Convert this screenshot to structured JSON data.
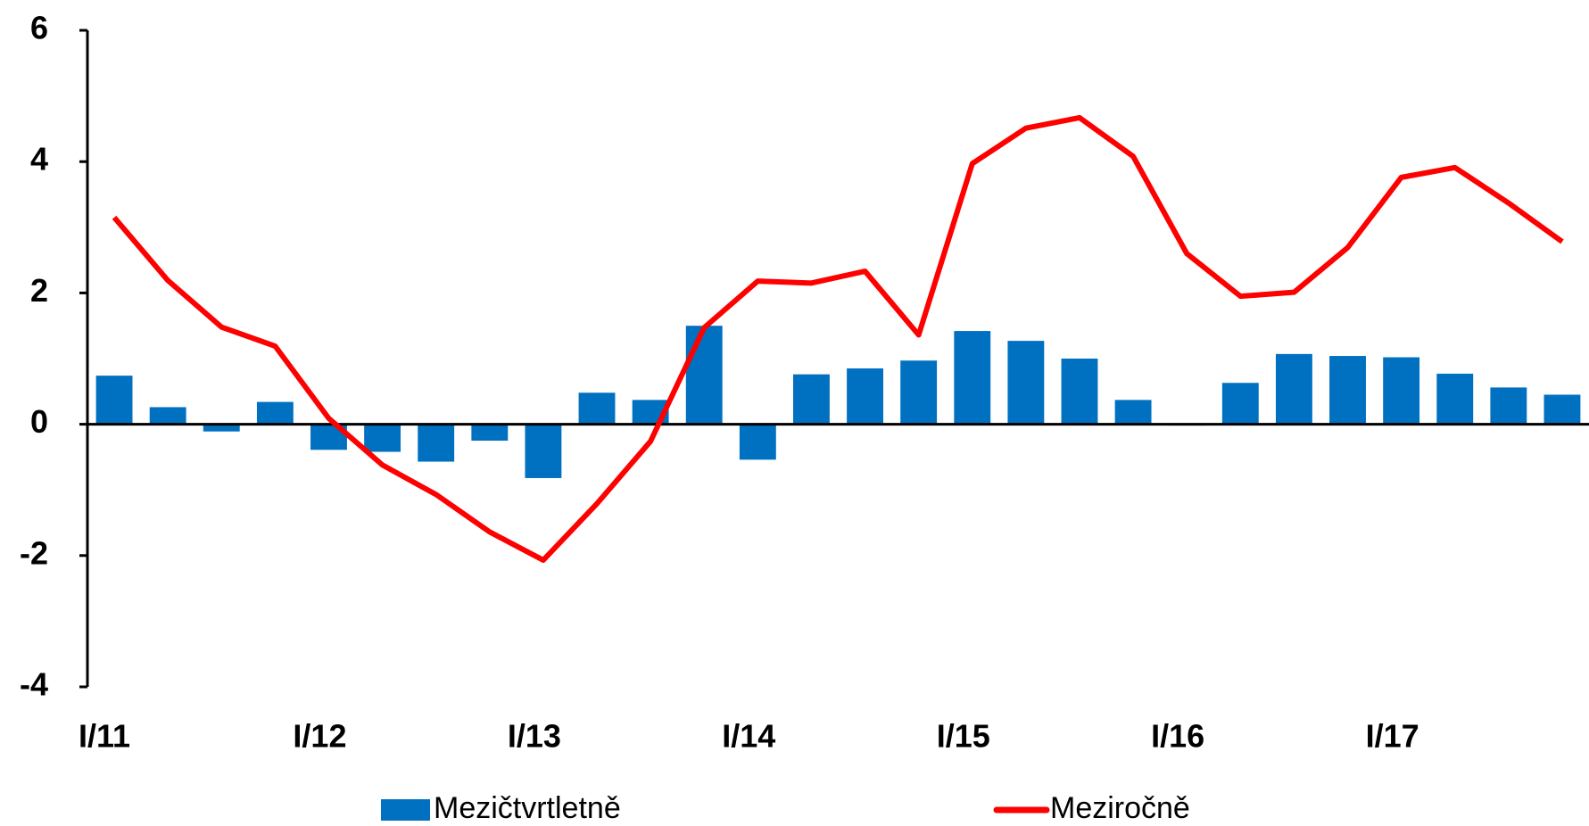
{
  "chart_data": {
    "type": "bar-line",
    "categories": [
      "I/11",
      null,
      null,
      null,
      "I/12",
      null,
      null,
      null,
      "I/13",
      null,
      null,
      null,
      "I/14",
      null,
      null,
      null,
      "I/15",
      null,
      null,
      null,
      "I/16",
      null,
      null,
      null,
      "I/17",
      null,
      null,
      null
    ],
    "series": [
      {
        "name": "Mezičtvrtletně",
        "type": "bar",
        "color": "#0070c0",
        "values": [
          0.74,
          0.26,
          -0.11,
          0.34,
          -0.39,
          -0.42,
          -0.57,
          -0.25,
          -0.82,
          0.48,
          0.37,
          1.5,
          -0.54,
          0.76,
          0.85,
          0.97,
          1.42,
          1.27,
          1.0,
          0.37,
          -0.02,
          0.63,
          1.07,
          1.04,
          1.02,
          0.77,
          0.56,
          0.45
        ]
      },
      {
        "name": "Meziročně",
        "type": "line",
        "color": "#ff0000",
        "values": [
          3.15,
          2.19,
          1.48,
          1.19,
          0.09,
          -0.62,
          -1.07,
          -1.64,
          -2.07,
          -1.21,
          -0.26,
          1.47,
          2.18,
          2.15,
          2.33,
          1.36,
          3.97,
          4.51,
          4.67,
          4.08,
          2.6,
          1.95,
          2.01,
          2.69,
          3.76,
          3.91,
          3.37,
          2.78
        ]
      }
    ],
    "ylim": [
      -4,
      6
    ],
    "yticks": [
      -4,
      -2,
      0,
      2,
      4,
      6
    ],
    "grid": false
  }
}
